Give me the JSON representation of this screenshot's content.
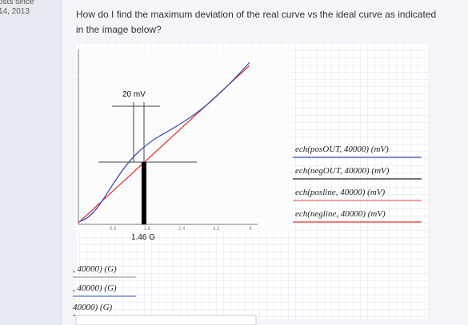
{
  "sidebar": {
    "line1": "osts since",
    "line2": "14, 2013"
  },
  "post": {
    "question_line1": "How do I find the maximum deviation of the real curve vs the ideal curve as indicated",
    "question_line2": "in the image below?"
  },
  "image": {
    "annotation_top": "20 mV",
    "annotation_bottom": "1.46 G",
    "x_ticks": [
      "0.8",
      "1.6",
      "2.4",
      "3.2",
      "4"
    ],
    "legend": [
      "ech(posOUT, 40000)  (mV)",
      "ech(negOUT, 40000)  (mV)",
      "ech(posline, 40000)  (mV)",
      "ech(negline, 40000)  (mV)"
    ],
    "bottom_fragments": [
      ", 40000)  (G)",
      ", 40000)  (G)",
      "40000)  (G)"
    ]
  }
}
